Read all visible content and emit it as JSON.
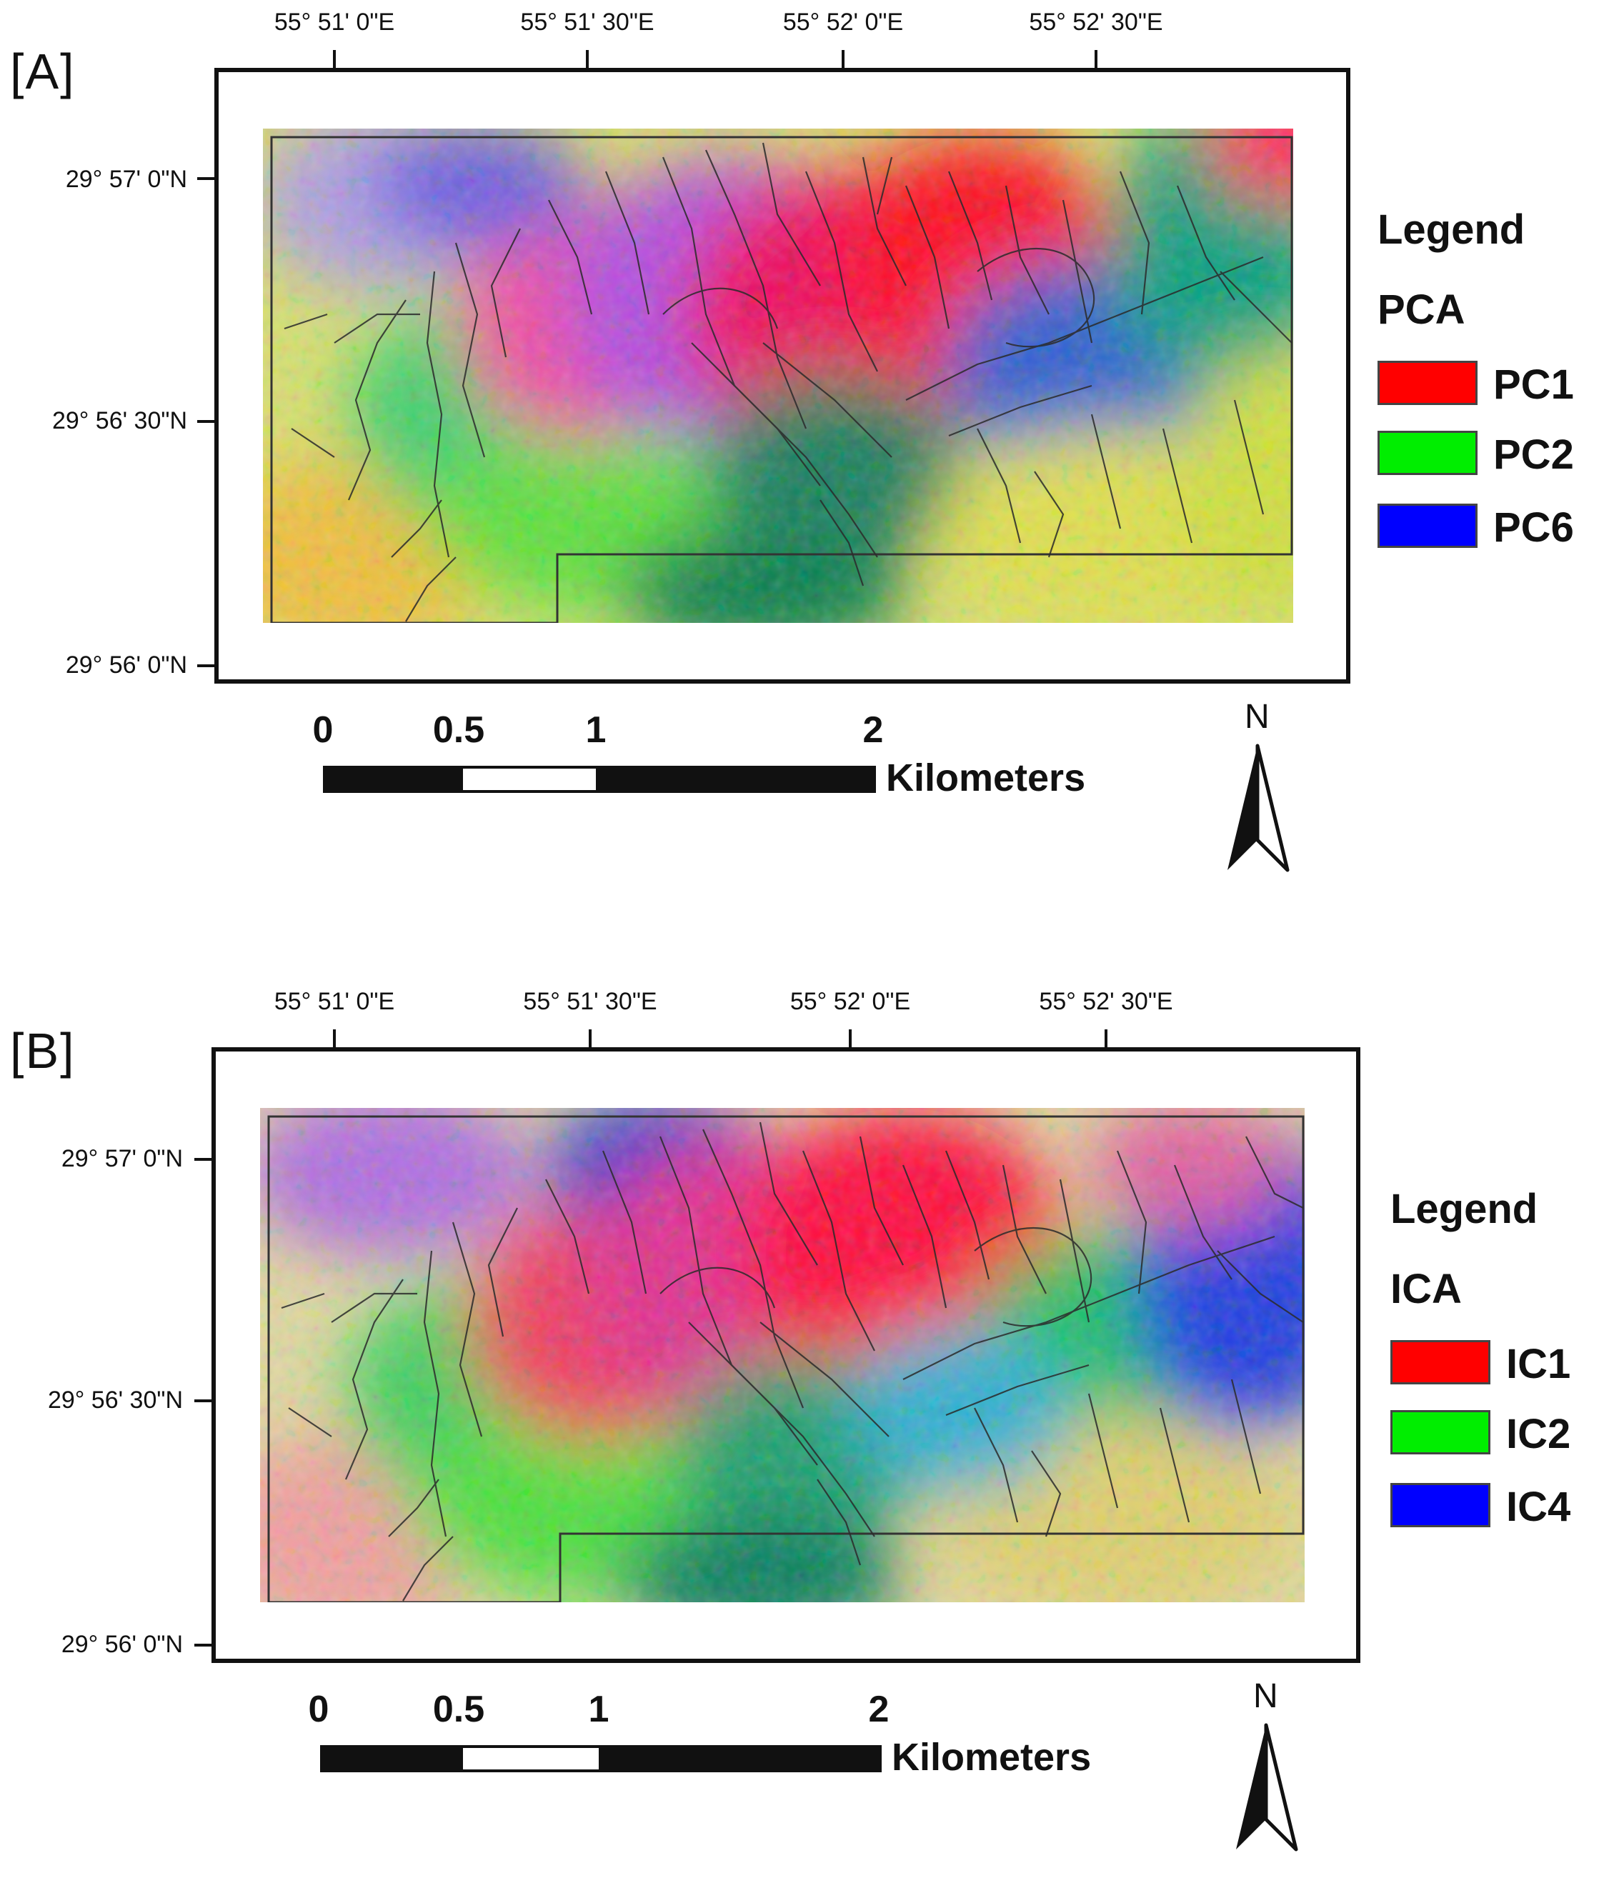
{
  "panels": [
    {
      "label": "[A]",
      "lon_ticks": [
        "55° 51' 0\"E",
        "55° 51' 30\"E",
        "55° 52' 0\"E",
        "55° 52' 30\"E"
      ],
      "lat_ticks": [
        "29° 57' 0\"N",
        "29° 56' 30\"N",
        "29° 56' 0\"N"
      ],
      "legend": {
        "title": "Legend",
        "subtitle": "PCA",
        "items": [
          {
            "label": "PC1",
            "color": "#ff0000"
          },
          {
            "label": "PC2",
            "color": "#00ee00"
          },
          {
            "label": "PC6",
            "color": "#0000ff"
          }
        ]
      },
      "scale_bar": {
        "labels": [
          "0",
          "0.5",
          "1",
          "2"
        ],
        "unit": "Kilometers"
      },
      "north": "N"
    },
    {
      "label": "[B]",
      "lon_ticks": [
        "55° 51' 0\"E",
        "55° 51' 30\"E",
        "55° 52' 0\"E",
        "55° 52' 30\"E"
      ],
      "lat_ticks": [
        "29° 57' 0\"N",
        "29° 56' 30\"N",
        "29° 56' 0\"N"
      ],
      "legend": {
        "title": "Legend",
        "subtitle": "ICA",
        "items": [
          {
            "label": "IC1",
            "color": "#ff0000"
          },
          {
            "label": "IC2",
            "color": "#00ee00"
          },
          {
            "label": "IC4",
            "color": "#0000ff"
          }
        ]
      },
      "scale_bar": {
        "labels": [
          "0",
          "0.5",
          "1",
          "2"
        ],
        "unit": "Kilometers"
      },
      "north": "N"
    }
  ]
}
